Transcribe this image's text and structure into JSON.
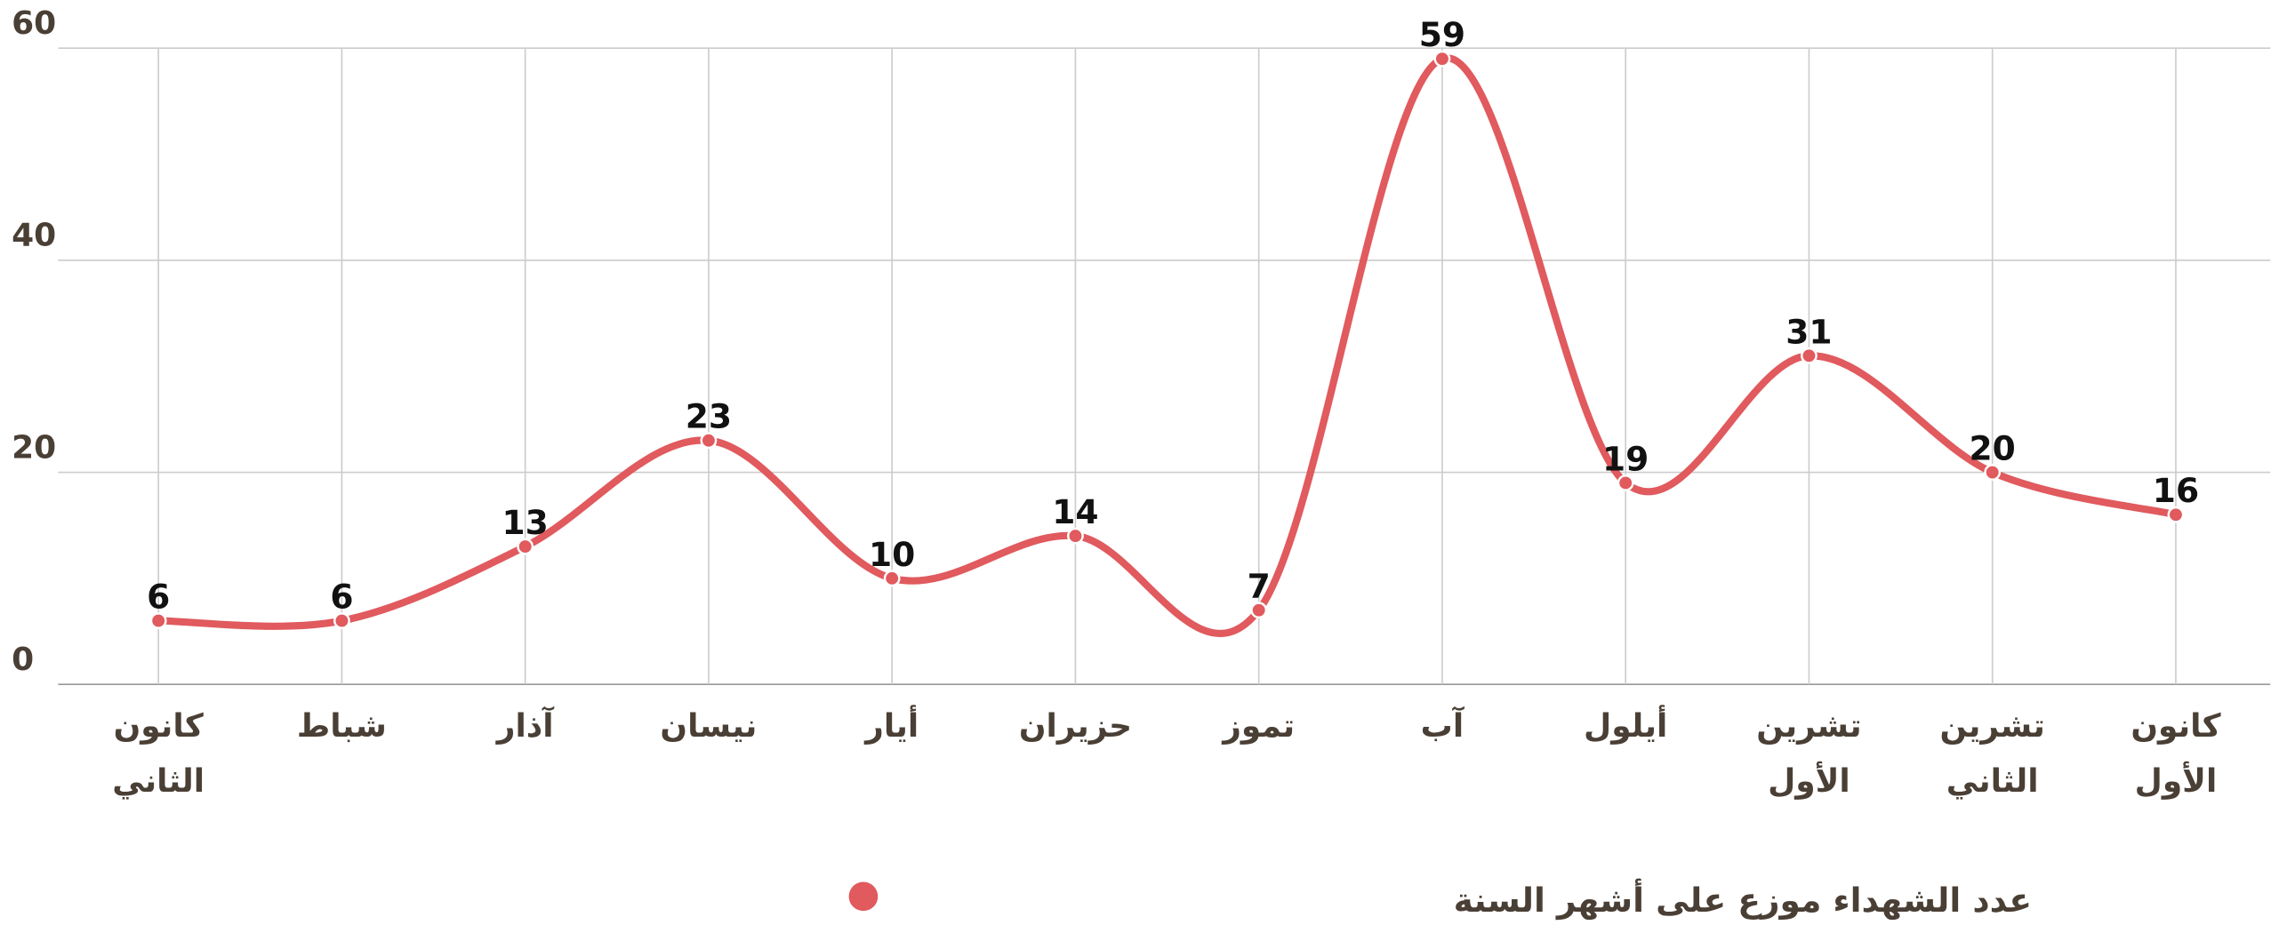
{
  "chart_data": {
    "type": "line",
    "categories": [
      "كانون الثاني",
      "شباط",
      "آذار",
      "نيسان",
      "أيار",
      "حزيران",
      "تموز",
      "آب",
      "أيلول",
      "تشرين الأول",
      "تشرين الثاني",
      "كانون الأول"
    ],
    "series": [
      {
        "name": "عدد الشهداء موزع على أشهر السنة",
        "color": "#e05a5e",
        "values": [
          6,
          6,
          13,
          23,
          10,
          14,
          7,
          59,
          19,
          31,
          20,
          16
        ]
      }
    ],
    "ylim": [
      0,
      60
    ],
    "yticks": [
      0,
      20,
      40,
      60
    ],
    "grid": true,
    "smooth": true,
    "legend": "bottom"
  }
}
